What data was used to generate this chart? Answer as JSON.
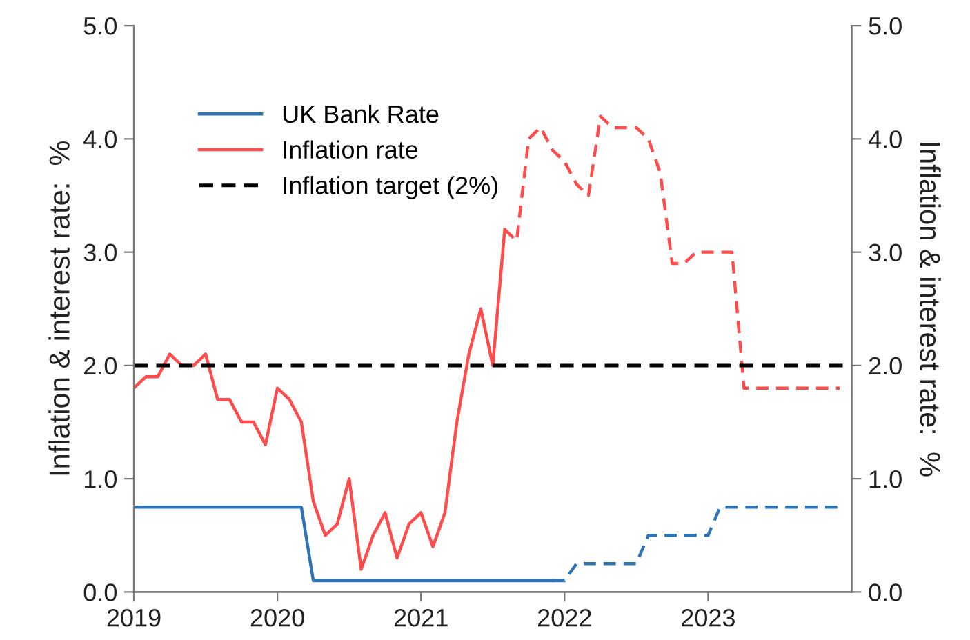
{
  "chart_data": {
    "type": "line",
    "ylabel": "Inflation & interest rate:  %",
    "y2label": "Inflation & interest rate:  %",
    "x": [
      "2019-01",
      "2019-02",
      "2019-03",
      "2019-04",
      "2019-05",
      "2019-06",
      "2019-07",
      "2019-08",
      "2019-09",
      "2019-10",
      "2019-11",
      "2019-12",
      "2020-01",
      "2020-02",
      "2020-03",
      "2020-04",
      "2020-05",
      "2020-06",
      "2020-07",
      "2020-08",
      "2020-09",
      "2020-10",
      "2020-11",
      "2020-12",
      "2021-01",
      "2021-02",
      "2021-03",
      "2021-04",
      "2021-05",
      "2021-06",
      "2021-07",
      "2021-08",
      "2021-09",
      "2021-10",
      "2021-11",
      "2021-12",
      "2022-01",
      "2022-02",
      "2022-03",
      "2022-04",
      "2022-05",
      "2022-06",
      "2022-07",
      "2022-08",
      "2022-09",
      "2022-10",
      "2022-11",
      "2022-12",
      "2023-01",
      "2023-02",
      "2023-03",
      "2023-04",
      "2023-05",
      "2023-06",
      "2023-07",
      "2023-08",
      "2023-09",
      "2023-10",
      "2023-11",
      "2023-12"
    ],
    "series": [
      {
        "name": "UK Bank Rate",
        "color": "#2e75b6",
        "line_style": "solid",
        "values": [
          0.75,
          0.75,
          0.75,
          0.75,
          0.75,
          0.75,
          0.75,
          0.75,
          0.75,
          0.75,
          0.75,
          0.75,
          0.75,
          0.75,
          0.75,
          0.1,
          0.1,
          0.1,
          0.1,
          0.1,
          0.1,
          0.1,
          0.1,
          0.1,
          0.1,
          0.1,
          0.1,
          0.1,
          0.1,
          0.1,
          0.1,
          0.1,
          0.1,
          0.1,
          0.1,
          0.1,
          null,
          null,
          null,
          null,
          null,
          null,
          null,
          null,
          null,
          null,
          null,
          null,
          null,
          null,
          null,
          null,
          null,
          null,
          null,
          null,
          null,
          null,
          null,
          null
        ]
      },
      {
        "color": "#2e75b6",
        "line_style": "dashed",
        "values": [
          null,
          null,
          null,
          null,
          null,
          null,
          null,
          null,
          null,
          null,
          null,
          null,
          null,
          null,
          null,
          null,
          null,
          null,
          null,
          null,
          null,
          null,
          null,
          null,
          null,
          null,
          null,
          null,
          null,
          null,
          null,
          null,
          null,
          null,
          null,
          0.1,
          0.1,
          0.25,
          0.25,
          0.25,
          0.25,
          0.25,
          0.25,
          0.5,
          0.5,
          0.5,
          0.5,
          0.5,
          0.5,
          0.75,
          0.75,
          0.75,
          0.75,
          0.75,
          0.75,
          0.75,
          0.75,
          0.75,
          0.75,
          0.75
        ]
      },
      {
        "name": "Inflation rate",
        "color": "#ff4b4b",
        "line_style": "solid",
        "values": [
          1.8,
          1.9,
          1.9,
          2.1,
          2.0,
          2.0,
          2.1,
          1.7,
          1.7,
          1.5,
          1.5,
          1.3,
          1.8,
          1.7,
          1.5,
          0.8,
          0.5,
          0.6,
          1.0,
          0.2,
          0.5,
          0.7,
          0.3,
          0.6,
          0.7,
          0.4,
          0.7,
          1.5,
          2.1,
          2.5,
          2.0,
          3.2,
          null,
          null,
          null,
          null,
          null,
          null,
          null,
          null,
          null,
          null,
          null,
          null,
          null,
          null,
          null,
          null,
          null,
          null,
          null,
          null,
          null,
          null,
          null,
          null,
          null,
          null,
          null,
          null
        ]
      },
      {
        "color": "#ff4b4b",
        "line_style": "dashed",
        "values": [
          null,
          null,
          null,
          null,
          null,
          null,
          null,
          null,
          null,
          null,
          null,
          null,
          null,
          null,
          null,
          null,
          null,
          null,
          null,
          null,
          null,
          null,
          null,
          null,
          null,
          null,
          null,
          null,
          null,
          null,
          null,
          3.2,
          3.1,
          4.0,
          4.1,
          3.9,
          3.8,
          3.6,
          3.5,
          4.2,
          4.1,
          4.1,
          4.1,
          4.0,
          3.7,
          2.9,
          2.9,
          3.0,
          3.0,
          3.0,
          3.0,
          1.8,
          1.8,
          1.8,
          1.8,
          1.8,
          1.8,
          1.8,
          1.8,
          1.8
        ]
      }
    ],
    "ref_lines": [
      {
        "axis": "y",
        "value": 2,
        "label": "Inflation target (2%)",
        "color": "#000000",
        "line_style": "dashed"
      }
    ],
    "xlim": [
      "2019-01",
      "2024-01"
    ],
    "xticks": [
      {
        "value": "2019-01",
        "label": "2019"
      },
      {
        "value": "2020-01",
        "label": "2020"
      },
      {
        "value": "2021-01",
        "label": "2021"
      },
      {
        "value": "2022-01",
        "label": "2022"
      },
      {
        "value": "2023-01",
        "label": "2023"
      }
    ],
    "ylim": [
      0,
      5
    ],
    "yticks": [
      {
        "value": 0,
        "label": "0.0"
      },
      {
        "value": 1,
        "label": "1.0"
      },
      {
        "value": 2,
        "label": "2.0"
      },
      {
        "value": 3,
        "label": "3.0"
      },
      {
        "value": 4,
        "label": "4.0"
      },
      {
        "value": 5,
        "label": "5.0"
      }
    ],
    "y2lim": [
      0,
      5
    ],
    "y2ticks": [
      {
        "value": 0,
        "label": "0.0"
      },
      {
        "value": 1,
        "label": "1.0"
      },
      {
        "value": 2,
        "label": "2.0"
      },
      {
        "value": 3,
        "label": "3.0"
      },
      {
        "value": 4,
        "label": "4.0"
      },
      {
        "value": 5,
        "label": "5.0"
      }
    ],
    "grid": false,
    "legend": "top left"
  }
}
